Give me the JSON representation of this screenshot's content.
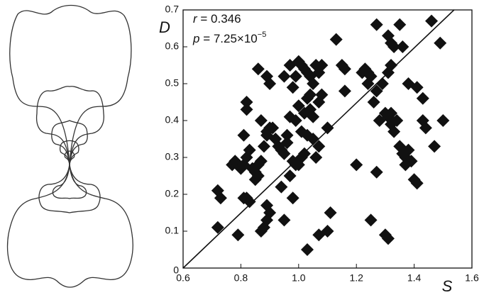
{
  "chart_data": {
    "type": "scatter",
    "xlabel": "S",
    "ylabel": "D",
    "annotations": [
      {
        "var": "r",
        "text": " = 0.346"
      },
      {
        "var": "p",
        "text": " = 7.25×10",
        "sup": "−5"
      }
    ],
    "xlim": [
      0.6,
      1.6
    ],
    "ylim": [
      0,
      0.7
    ],
    "xticks": [
      0.6,
      0.8,
      {
        "value": 1,
        "label": "1.0"
      },
      1.2,
      1.4,
      1.6
    ],
    "yticks": [
      0,
      0.1,
      0.2,
      0.3,
      0.4,
      0.5,
      0.6,
      0.7
    ],
    "color": "#111111",
    "fit_line": {
      "x": [
        0.6,
        1.538
      ],
      "y": [
        0,
        0.7
      ]
    },
    "x": [
      0.72,
      0.73,
      0.72,
      0.79,
      0.81,
      0.82,
      0.83,
      0.87,
      0.88,
      0.89,
      0.9,
      0.89,
      0.95,
      0.98,
      0.94,
      0.86,
      0.85,
      0.84,
      0.77,
      0.78,
      0.8,
      0.81,
      0.82,
      0.83,
      0.85,
      0.86,
      0.87,
      0.88,
      0.89,
      0.9,
      0.92,
      0.93,
      0.94,
      0.95,
      0.96,
      0.98,
      1.0,
      1.01,
      1.02,
      0.81,
      0.82,
      0.82,
      0.89,
      0.87,
      0.91,
      0.86,
      0.89,
      0.9,
      0.95,
      0.97,
      0.99,
      0.98,
      1.0,
      1.01,
      1.02,
      1.03,
      1.04,
      1.06,
      1.07,
      1.08,
      1.05,
      1.04,
      1.03,
      1.07,
      1.08,
      1.0,
      1.02,
      1.04,
      1.05,
      0.99,
      0.97,
      1.01,
      1.03,
      1.05,
      0.96,
      1.06,
      1.07,
      1.1,
      1.13,
      1.15,
      1.16,
      1.16,
      1.22,
      1.23,
      1.24,
      1.25,
      1.27,
      1.24,
      1.26,
      1.29,
      1.31,
      1.32,
      1.27,
      1.31,
      1.32,
      1.33,
      1.35,
      1.36,
      1.46,
      1.49,
      1.41,
      1.43,
      1.38,
      1.28,
      1.3,
      1.31,
      1.32,
      1.33,
      1.35,
      1.36,
      1.37,
      1.38,
      1.39,
      1.37,
      1.4,
      1.41,
      1.43,
      1.44,
      1.5,
      1.47,
      1.34,
      1.32,
      1.2,
      1.27,
      1.07,
      1.1,
      1.11,
      1.03,
      1.25,
      1.3,
      1.31,
      0.99,
      0.97
    ],
    "y": [
      0.21,
      0.19,
      0.11,
      0.09,
      0.19,
      0.19,
      0.18,
      0.1,
      0.11,
      0.17,
      0.15,
      0.13,
      0.13,
      0.19,
      0.22,
      0.25,
      0.24,
      0.27,
      0.28,
      0.29,
      0.27,
      0.28,
      0.3,
      0.32,
      0.26,
      0.28,
      0.29,
      0.33,
      0.36,
      0.38,
      0.35,
      0.33,
      0.32,
      0.31,
      0.34,
      0.29,
      0.28,
      0.3,
      0.31,
      0.36,
      0.43,
      0.45,
      0.37,
      0.4,
      0.38,
      0.54,
      0.52,
      0.5,
      0.52,
      0.55,
      0.52,
      0.49,
      0.56,
      0.55,
      0.54,
      0.53,
      0.52,
      0.55,
      0.53,
      0.55,
      0.5,
      0.47,
      0.46,
      0.45,
      0.47,
      0.44,
      0.42,
      0.43,
      0.41,
      0.4,
      0.41,
      0.37,
      0.36,
      0.35,
      0.36,
      0.3,
      0.33,
      0.38,
      0.62,
      0.55,
      0.54,
      0.48,
      0.53,
      0.54,
      0.53,
      0.52,
      0.48,
      0.5,
      0.45,
      0.5,
      0.53,
      0.55,
      0.66,
      0.63,
      0.61,
      0.6,
      0.66,
      0.6,
      0.67,
      0.61,
      0.49,
      0.46,
      0.5,
      0.4,
      0.42,
      0.41,
      0.39,
      0.37,
      0.33,
      0.31,
      0.3,
      0.32,
      0.29,
      0.28,
      0.24,
      0.23,
      0.4,
      0.38,
      0.4,
      0.33,
      0.4,
      0.42,
      0.28,
      0.26,
      0.09,
      0.1,
      0.15,
      0.05,
      0.13,
      0.09,
      0.08,
      0.28,
      0.25
    ]
  }
}
